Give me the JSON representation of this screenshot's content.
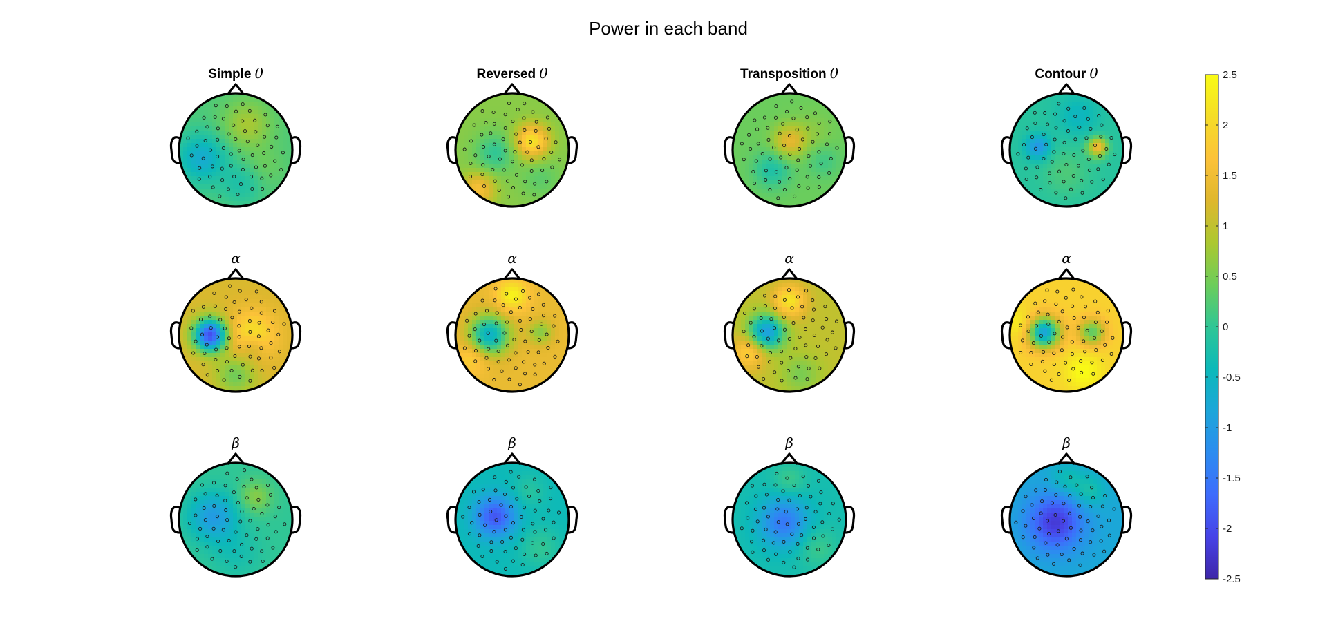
{
  "title": "Power in each band",
  "colors": {
    "colormap": [
      "#3e26a8",
      "#4743e7",
      "#3e6cfc",
      "#2c8cf0",
      "#1ca6d9",
      "#0cb9b9",
      "#30c695",
      "#6dcd5a",
      "#acc830",
      "#dfb72e",
      "#fcc239",
      "#f5dd28",
      "#f9fb15"
    ],
    "outline": "#000000",
    "electrode": "#1a1a1a"
  },
  "chart_data": {
    "type": "heatmap",
    "description_kind": "topographic scalp maps, 3 bands x 4 conditions",
    "column_titles": [
      {
        "name": "Simple",
        "symbol": "θ"
      },
      {
        "name": "Reversed",
        "symbol": "θ"
      },
      {
        "name": "Transposition",
        "symbol": "θ"
      },
      {
        "name": "Contour",
        "symbol": "θ"
      }
    ],
    "row_labels": [
      "θ",
      "α",
      "β"
    ],
    "colorbar": {
      "range": [
        -2.5,
        2.5
      ],
      "ticks": [
        "2.5",
        "2",
        "1.5",
        "1",
        "0.5",
        "0",
        "-0.5",
        "-1",
        "-1.5",
        "-2",
        "-2.5"
      ]
    },
    "maps": [
      [
        {
          "base": 0.2,
          "blobs": [
            [
              -0.6,
              -0.15,
              -0.9,
              0.3
            ],
            [
              0.2,
              0.45,
              0.6,
              0.3
            ],
            [
              0.1,
              -0.6,
              -0.4,
              0.25
            ],
            [
              0.5,
              -0.3,
              0.2,
              0.25
            ]
          ]
        },
        {
          "base": 0.6,
          "blobs": [
            [
              0.35,
              0.15,
              1.6,
              0.2
            ],
            [
              -0.3,
              -0.05,
              -0.6,
              0.25
            ],
            [
              -0.6,
              -0.7,
              1.0,
              0.2
            ],
            [
              0.5,
              -0.5,
              -0.3,
              0.25
            ]
          ]
        },
        {
          "base": 0.4,
          "blobs": [
            [
              -0.3,
              -0.35,
              -0.6,
              0.22
            ],
            [
              0.0,
              0.15,
              0.9,
              0.2
            ],
            [
              0.4,
              0.3,
              0.2,
              0.25
            ],
            [
              0.6,
              -0.2,
              -0.3,
              0.2
            ]
          ]
        },
        {
          "base": -0.1,
          "blobs": [
            [
              -0.5,
              0.05,
              -1.0,
              0.15
            ],
            [
              0.55,
              0.05,
              1.6,
              0.12
            ],
            [
              0.0,
              -0.4,
              0.3,
              0.3
            ],
            [
              0.2,
              0.6,
              -0.4,
              0.25
            ]
          ]
        }
      ],
      [
        {
          "base": 1.2,
          "blobs": [
            [
              -0.45,
              0.0,
              -3.2,
              0.2
            ],
            [
              0.3,
              0.0,
              1.0,
              0.3
            ],
            [
              0.3,
              -0.2,
              -0.6,
              0.15
            ],
            [
              0.0,
              -0.7,
              -0.8,
              0.25
            ]
          ]
        },
        {
          "base": 1.4,
          "blobs": [
            [
              -0.4,
              0.0,
              -2.0,
              0.25
            ],
            [
              0.5,
              0.05,
              -0.8,
              0.15
            ],
            [
              0.0,
              0.7,
              1.0,
              0.2
            ],
            [
              -0.7,
              -0.4,
              0.6,
              0.2
            ]
          ]
        },
        {
          "base": 1.0,
          "blobs": [
            [
              -0.4,
              0.05,
              -2.0,
              0.22
            ],
            [
              0.0,
              0.6,
              1.2,
              0.2
            ],
            [
              -0.7,
              -0.3,
              1.0,
              0.2
            ],
            [
              0.2,
              -0.7,
              -0.5,
              0.25
            ]
          ]
        },
        {
          "base": 1.9,
          "blobs": [
            [
              -0.4,
              0.05,
              -2.8,
              0.2
            ],
            [
              0.45,
              0.05,
              -1.6,
              0.17
            ],
            [
              0.3,
              -0.65,
              0.6,
              0.25
            ],
            [
              -0.8,
              0.2,
              0.5,
              0.2
            ]
          ]
        }
      ],
      [
        {
          "base": 0.0,
          "blobs": [
            [
              -0.4,
              0.05,
              -1.0,
              0.3
            ],
            [
              0.35,
              0.4,
              0.6,
              0.2
            ],
            [
              0.0,
              -0.6,
              -0.3,
              0.3
            ]
          ]
        },
        {
          "base": -0.4,
          "blobs": [
            [
              -0.3,
              0.05,
              -1.5,
              0.25
            ],
            [
              0.3,
              0.5,
              0.3,
              0.2
            ],
            [
              0.5,
              -0.5,
              0.4,
              0.25
            ]
          ]
        },
        {
          "base": -0.3,
          "blobs": [
            [
              -0.1,
              -0.05,
              -1.2,
              0.3
            ],
            [
              0.5,
              -0.5,
              0.4,
              0.25
            ],
            [
              0.0,
              0.7,
              0.4,
              0.2
            ]
          ]
        },
        {
          "base": -0.8,
          "blobs": [
            [
              -0.2,
              -0.05,
              -1.4,
              0.35
            ],
            [
              0.4,
              0.5,
              0.6,
              0.2
            ],
            [
              0.0,
              0.7,
              0.5,
              0.2
            ]
          ]
        }
      ]
    ],
    "electrodes_per_map": 64
  }
}
